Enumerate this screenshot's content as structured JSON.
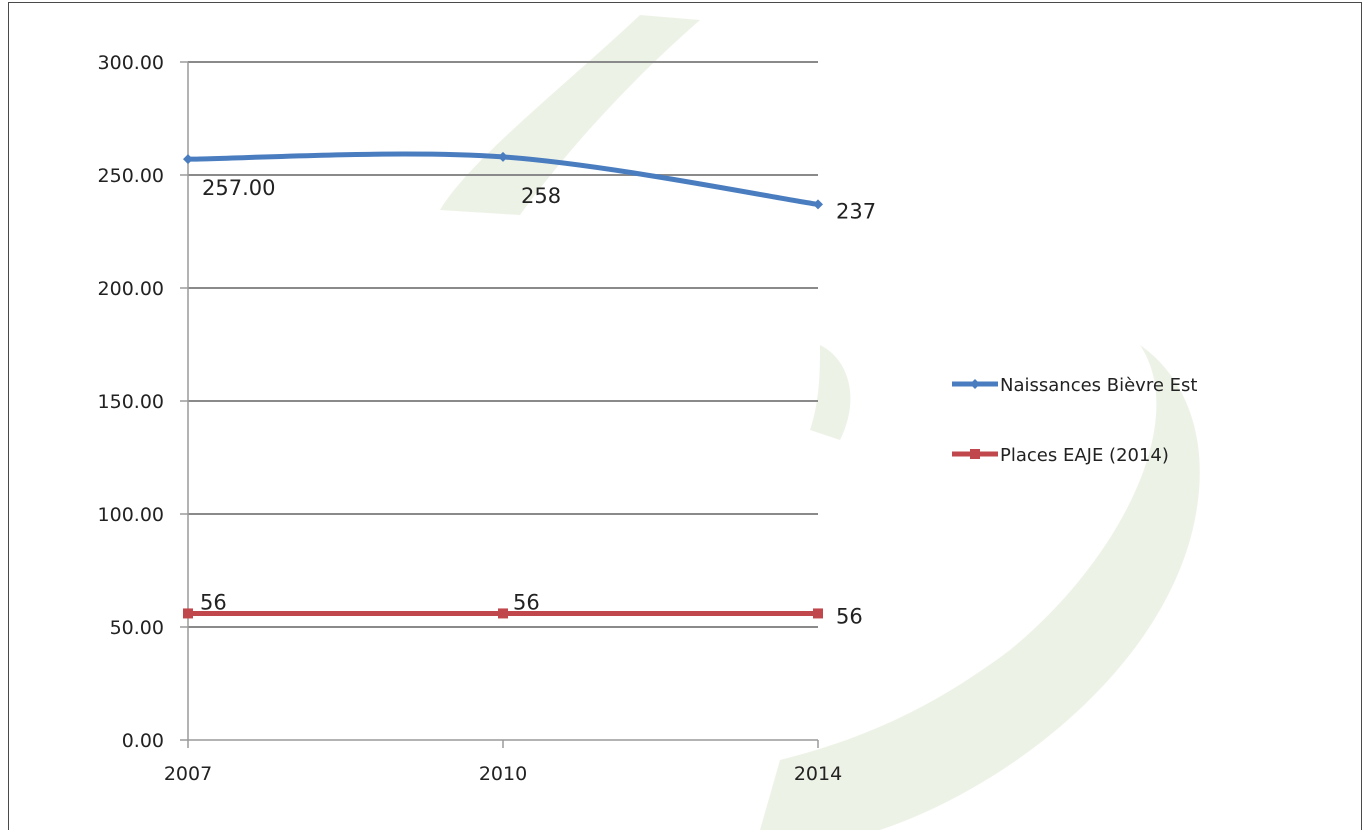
{
  "colors": {
    "naissances": "#4a7dc0",
    "places": "#c0474b",
    "gridline": "#8a8a8a",
    "axis": "#9a9a9a",
    "watermark": "#e9efe0"
  },
  "chart_data": {
    "type": "line",
    "categories": [
      "2007",
      "2010",
      "2014"
    ],
    "ylim": [
      0,
      300
    ],
    "y_ticks": [
      "0.00",
      "50.00",
      "100.00",
      "150.00",
      "200.00",
      "250.00",
      "300.00"
    ],
    "grid": true,
    "legend_position": "right",
    "series": [
      {
        "name": "Naissances Bièvre Est",
        "values": [
          257,
          258,
          237
        ],
        "data_labels": [
          "257.00",
          "258",
          "237"
        ],
        "smooth": true,
        "marker": "diamond"
      },
      {
        "name": "Places EAJE (2014)",
        "values": [
          56,
          56,
          56
        ],
        "data_labels": [
          "56",
          "56",
          "56"
        ],
        "smooth": false,
        "marker": "square"
      }
    ]
  }
}
